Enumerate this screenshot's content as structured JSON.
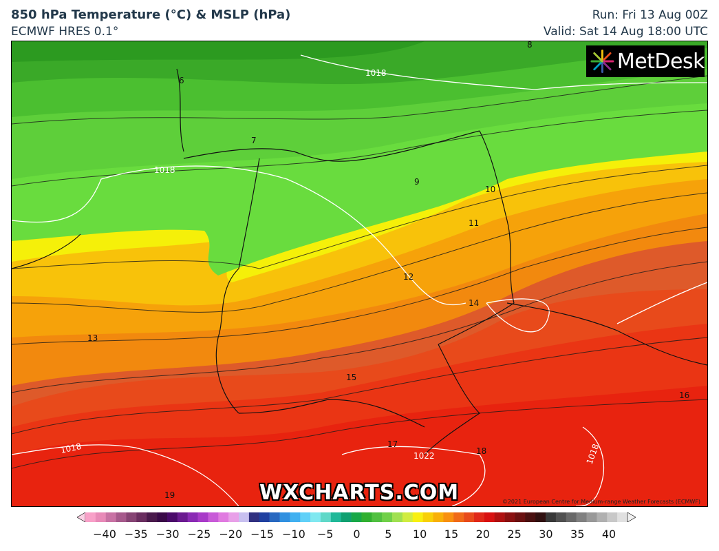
{
  "header": {
    "title": "850 hPa Temperature (°C) & MSLP (hPa)",
    "model": "ECMWF HRES 0.1°",
    "run": "Run: Fri 13 Aug 00Z",
    "valid": "Valid: Sat 14 Aug 18:00 UTC"
  },
  "logo": {
    "text": "MetDesk",
    "icon": "metdesk-starburst-icon"
  },
  "watermark": "WXCHARTS.COM",
  "copyright": "©2021 European Centre for Medium-range Weather Forecasts (ECMWF)",
  "map": {
    "temperature_labels": [
      "6",
      "7",
      "8",
      "9",
      "10",
      "11",
      "12",
      "13",
      "14",
      "15",
      "16",
      "17",
      "18",
      "19"
    ],
    "pressure_labels": [
      "1018",
      "1018",
      "1018",
      "1018",
      "1022"
    ],
    "colors": {
      "t19": "#e8230f",
      "t18": "#ea3514",
      "t17": "#e84a1b",
      "t16": "#de5a2a",
      "t15": "#f2890e",
      "t14": "#f6a20a",
      "t13": "#f8c20a",
      "t12": "#f5f009",
      "t11": "#f6f20b",
      "t10": "#69dc3e",
      "t9": "#5ecf3a",
      "t8": "#4bbf30",
      "t7": "#3aa928",
      "t6": "#2c9a20"
    }
  },
  "colorbar": {
    "ticks": [
      "−40",
      "−35",
      "−30",
      "−25",
      "−20",
      "−15",
      "−10",
      "−5",
      "0",
      "5",
      "10",
      "15",
      "20",
      "25",
      "30",
      "35",
      "40"
    ],
    "colors": [
      "#f8a0c8",
      "#e88ab8",
      "#c872a4",
      "#a65a8c",
      "#864474",
      "#6a2e60",
      "#4a1a4c",
      "#3a0a48",
      "#4a0a6a",
      "#6a1a90",
      "#8a2ab4",
      "#a83ac8",
      "#c85ad8",
      "#e07ae0",
      "#e8a0e8",
      "#c8c0f0",
      "#303080",
      "#2040a0",
      "#2868c0",
      "#3090e0",
      "#40b0f0",
      "#60d0f8",
      "#80e8f0",
      "#60d8c8",
      "#20b898",
      "#10a070",
      "#18a848",
      "#30b030",
      "#50c040",
      "#70d048",
      "#a0e050",
      "#d0ec40",
      "#f8f010",
      "#f8d008",
      "#f8b008",
      "#f89010",
      "#f06a18",
      "#e84a1a",
      "#e02818",
      "#d81010",
      "#b01010",
      "#8a1010",
      "#6a1010",
      "#4a1010",
      "#301010",
      "#383838",
      "#505050",
      "#686868",
      "#808080",
      "#989898",
      "#b0b0b0",
      "#c8c8c8",
      "#e0e0e0"
    ]
  }
}
